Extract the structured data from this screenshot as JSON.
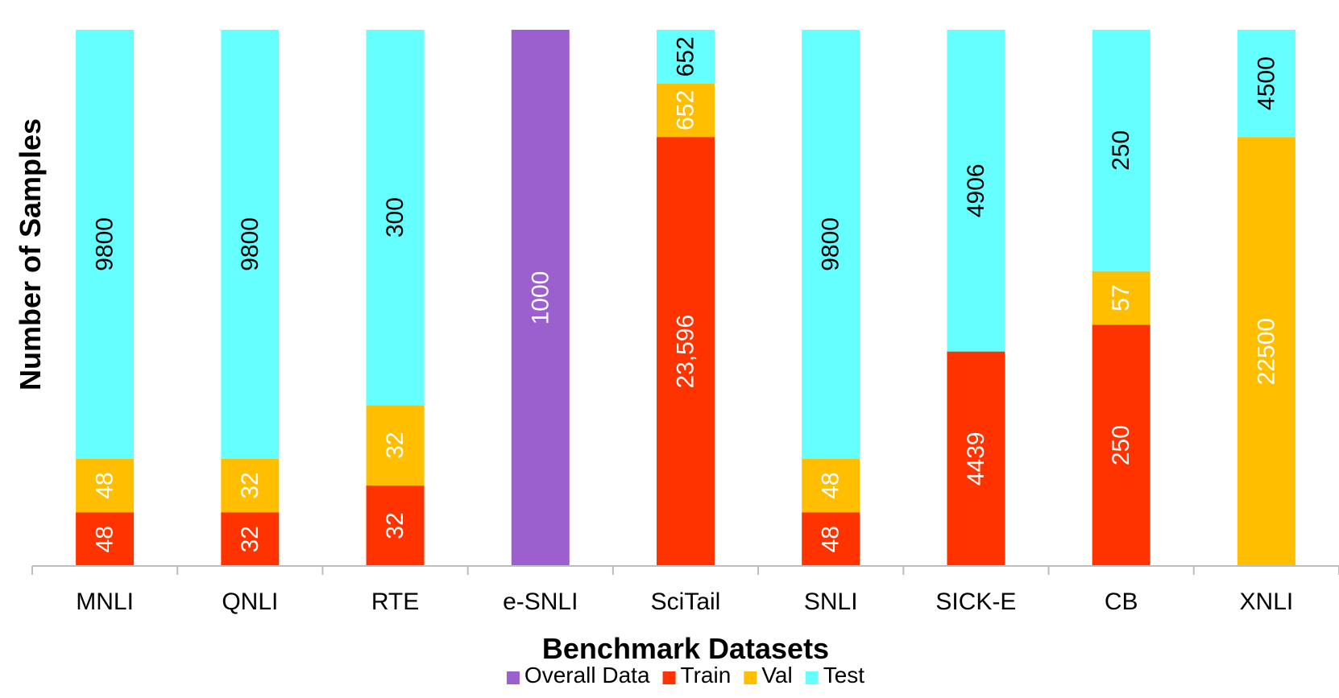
{
  "chart_data": {
    "type": "bar",
    "stacked": true,
    "percent_stacked": true,
    "xlabel": "Benchmark Datasets",
    "ylabel": "Number of Samples",
    "categories": [
      "MNLI",
      "QNLI",
      "RTE",
      "e-SNLI",
      "SciTail",
      "SNLI",
      "SICK-E",
      "CB",
      "XNLI"
    ],
    "series": [
      {
        "name": "Overall Data",
        "color": "#9b5fce",
        "values": [
          null,
          null,
          null,
          1000,
          null,
          null,
          null,
          null,
          null
        ],
        "labels": [
          "",
          "",
          "",
          "1000",
          "",
          "",
          "",
          "",
          ""
        ]
      },
      {
        "name": "Train",
        "color": "#ff3300",
        "values": [
          48,
          32,
          32,
          null,
          23596,
          48,
          4439,
          250,
          null
        ],
        "labels": [
          "48",
          "32",
          "32",
          "",
          "23,596",
          "48",
          "4439",
          "250",
          ""
        ]
      },
      {
        "name": "Val",
        "color": "#ffbf00",
        "values": [
          48,
          32,
          32,
          null,
          652,
          48,
          null,
          57,
          22500
        ],
        "labels": [
          "48",
          "32",
          "32",
          "",
          "652",
          "48",
          "",
          "57",
          "22500"
        ]
      },
      {
        "name": "Test",
        "color": "#66ffff",
        "values": [
          9800,
          9800,
          300,
          null,
          652,
          9800,
          4906,
          250,
          4500
        ],
        "labels": [
          "9800",
          "9800",
          "300",
          "",
          "652",
          "9800",
          "4906",
          "250",
          "4500"
        ]
      }
    ],
    "segment_fractions": [
      [
        0,
        0.1,
        0.1,
        0.8
      ],
      [
        0,
        0.1,
        0.1,
        0.8
      ],
      [
        0,
        0.15,
        0.15,
        0.7
      ],
      [
        1,
        0,
        0,
        0
      ],
      [
        0,
        0.8,
        0.1,
        0.1
      ],
      [
        0,
        0.1,
        0.1,
        0.8
      ],
      [
        0,
        0.4,
        0,
        0.6
      ],
      [
        0,
        0.45,
        0.1,
        0.45
      ],
      [
        0,
        0,
        0.8,
        0.2
      ]
    ],
    "segment_label_colors": [
      [
        "",
        "#ffffff",
        "#ffffff",
        "#000000"
      ],
      [
        "",
        "#ffffff",
        "#ffffff",
        "#000000"
      ],
      [
        "",
        "#ffffff",
        "#ffffff",
        "#000000"
      ],
      [
        "#ffffff",
        "",
        "",
        ""
      ],
      [
        "",
        "#ffffff",
        "#ffffff",
        "#000000"
      ],
      [
        "",
        "#ffffff",
        "#ffffff",
        "#000000"
      ],
      [
        "",
        "#ffffff",
        "",
        "#000000"
      ],
      [
        "",
        "#ffffff",
        "#ffffff",
        "#000000"
      ],
      [
        "",
        "",
        "#ffffff",
        "#000000"
      ]
    ],
    "legend_position": "bottom",
    "grid": false
  }
}
